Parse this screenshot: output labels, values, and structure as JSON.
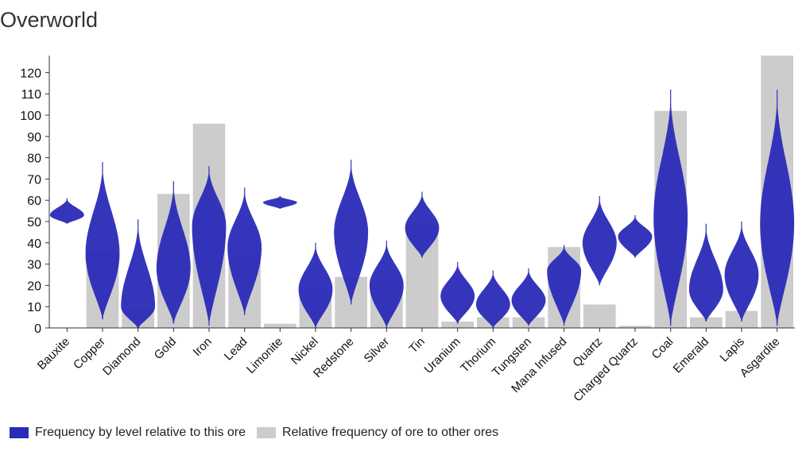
{
  "chart_data": {
    "type": "bar",
    "title": "Overworld",
    "xlabel": "",
    "ylabel": "",
    "ylim": [
      0,
      128
    ],
    "yticks": [
      0,
      10,
      20,
      30,
      40,
      50,
      60,
      70,
      80,
      90,
      100,
      110,
      120
    ],
    "grid": false,
    "legend_position": "bottom-left",
    "categories": [
      "Bauxite",
      "Copper",
      "Diamond",
      "Gold",
      "Iron",
      "Lead",
      "Limonite",
      "Nickel",
      "Redstone",
      "Silver",
      "Tin",
      "Uranium",
      "Thorium",
      "Tungsten",
      "Mana Infused",
      "Quartz",
      "Charged Quartz",
      "Coal",
      "Emerald",
      "Lapis",
      "Asgardite"
    ],
    "series": [
      {
        "name": "Relative frequency of ore to other ores",
        "color": "#cccccc",
        "values": [
          0,
          36,
          9,
          63,
          96,
          35,
          2,
          18,
          24,
          23,
          48,
          3,
          5,
          5,
          38,
          11,
          1,
          102,
          5,
          8,
          128
        ]
      },
      {
        "name": "Frequency by level relative to this ore",
        "color": "#2a2ab8",
        "type": "violin",
        "ranges": [
          [
            49,
            61
          ],
          [
            4,
            78
          ],
          [
            0,
            51
          ],
          [
            2,
            69
          ],
          [
            1,
            76
          ],
          [
            6,
            66
          ],
          [
            56,
            62
          ],
          [
            0,
            40
          ],
          [
            11,
            79
          ],
          [
            0,
            41
          ],
          [
            33,
            64
          ],
          [
            2,
            31
          ],
          [
            0,
            27
          ],
          [
            1,
            28
          ],
          [
            1,
            39
          ],
          [
            20,
            62
          ],
          [
            33,
            53
          ],
          [
            1,
            112
          ],
          [
            3,
            49
          ],
          [
            3,
            50
          ],
          [
            1,
            112
          ]
        ],
        "peaks": [
          53,
          35,
          10,
          28,
          48,
          38,
          59,
          18,
          45,
          20,
          47,
          15,
          11,
          13,
          27,
          40,
          43,
          52,
          18,
          25,
          49
        ]
      }
    ]
  },
  "legend": {
    "items": [
      {
        "label": "Frequency by level relative to this ore",
        "color": "#2a2ab8"
      },
      {
        "label": "Relative frequency of ore to other ores",
        "color": "#cccccc"
      }
    ]
  }
}
